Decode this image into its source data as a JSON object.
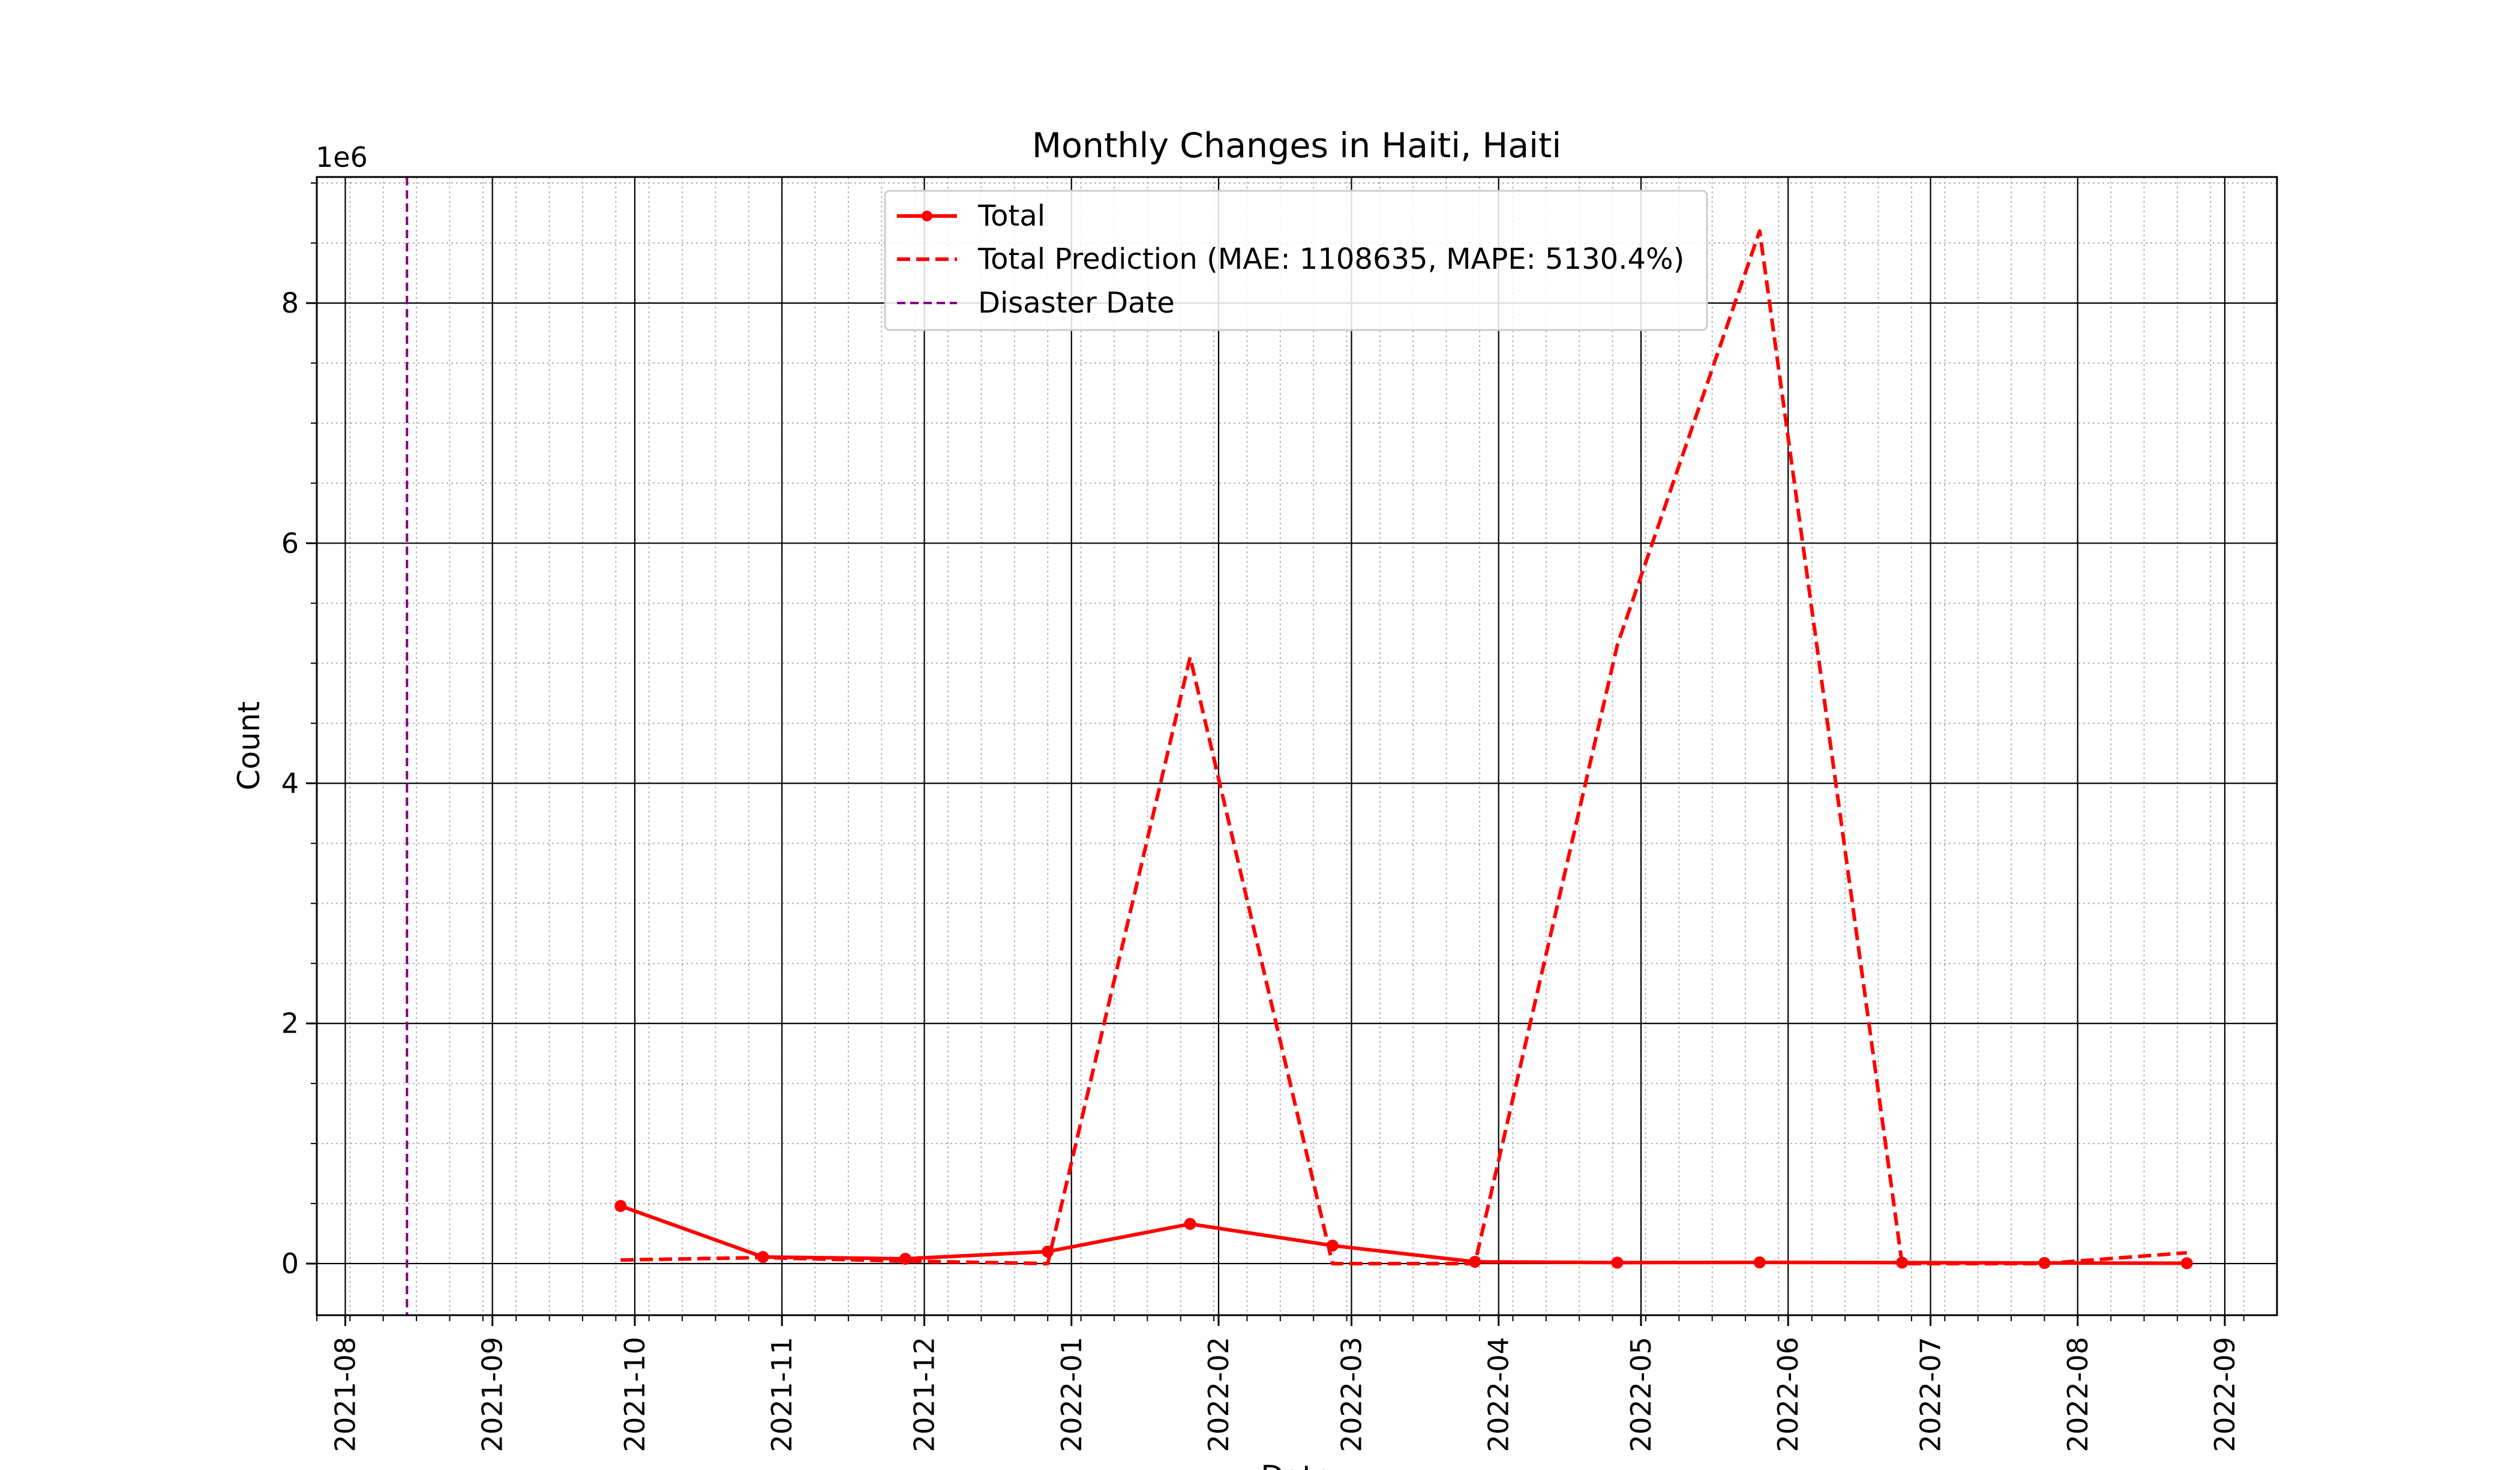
{
  "chart_data": {
    "type": "line",
    "title": "Monthly Changes in Haiti, Haiti",
    "xlabel": "Date",
    "ylabel": "Count",
    "y_offset_label": "1e6",
    "y_tick_labels": [
      "0",
      "2",
      "4",
      "6",
      "8"
    ],
    "x_tick_labels": [
      "2021-08",
      "2021-09",
      "2021-10",
      "2021-11",
      "2021-12",
      "2022-01",
      "2022-02",
      "2022-03",
      "2022-04",
      "2022-05",
      "2022-06",
      "2022-07",
      "2022-08",
      "2022-09"
    ],
    "xlim": [
      "2021-07-26",
      "2022-09-12"
    ],
    "ylim": [
      -430000,
      9050000
    ],
    "grid": "major solid, minor dotted",
    "legend": "upper-center",
    "x": [
      "2021-09-28",
      "2021-10-28",
      "2021-11-27",
      "2021-12-27",
      "2022-01-26",
      "2022-02-25",
      "2022-03-27",
      "2022-04-26",
      "2022-05-26",
      "2022-06-25",
      "2022-07-25",
      "2022-08-24"
    ],
    "series": [
      {
        "name": "Total",
        "style": "solid-marker",
        "color": "#ff0000",
        "values": [
          480000,
          55000,
          40000,
          100000,
          330000,
          150000,
          15000,
          8000,
          10000,
          8000,
          5000,
          3000
        ]
      },
      {
        "name": "Total Prediction (MAE: 1108635, MAPE: 5130.4%)",
        "style": "dashed",
        "color": "#ff0000",
        "values": [
          30000,
          50000,
          20000,
          0,
          5050000,
          0,
          0,
          5150000,
          8600000,
          0,
          0,
          90000
        ]
      }
    ],
    "vline": {
      "name": "Disaster Date",
      "date": "2021-08-14",
      "color": "#800080",
      "style": "dashed"
    }
  }
}
